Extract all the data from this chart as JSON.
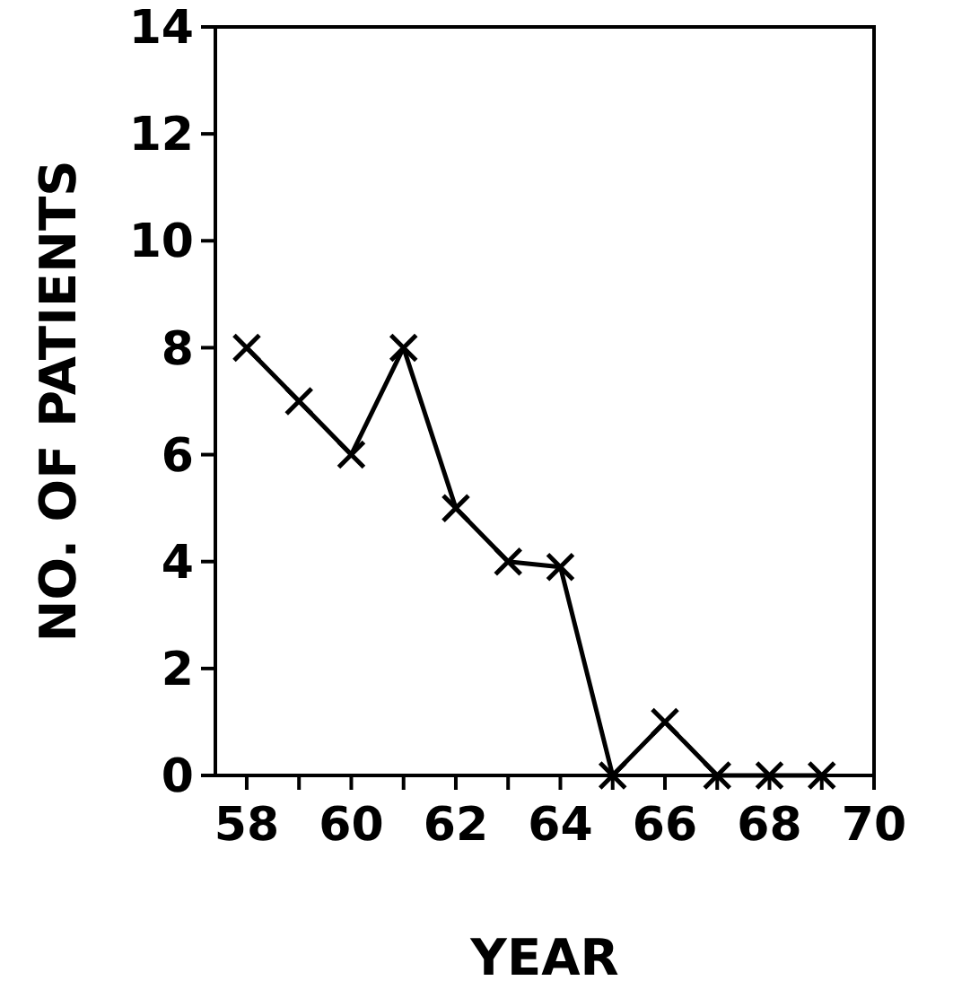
{
  "chart_data": {
    "type": "line",
    "xlabel": "YEAR",
    "ylabel": "NO. OF PATIENTS",
    "x": [
      58,
      59,
      60,
      61,
      62,
      63,
      64,
      65,
      66,
      67,
      68,
      69
    ],
    "values": [
      8,
      7,
      6,
      8,
      5,
      4,
      3.9,
      0,
      1,
      0,
      0,
      0
    ],
    "color": "#000000",
    "marker": "cross",
    "line_style": "solid",
    "xlim": [
      57.4,
      70
    ],
    "ylim": [
      0,
      14
    ],
    "xticks": [
      58,
      {
        "value": 59,
        "label": null
      },
      60,
      {
        "value": 61,
        "label": null
      },
      62,
      {
        "value": 63,
        "label": null
      },
      64,
      {
        "value": 65,
        "label": null
      },
      66,
      {
        "value": 67,
        "label": null
      },
      68,
      {
        "value": 69,
        "label": null
      },
      70
    ],
    "yticks": [
      0,
      2,
      4,
      6,
      8,
      10,
      12,
      14
    ],
    "grid": false
  }
}
